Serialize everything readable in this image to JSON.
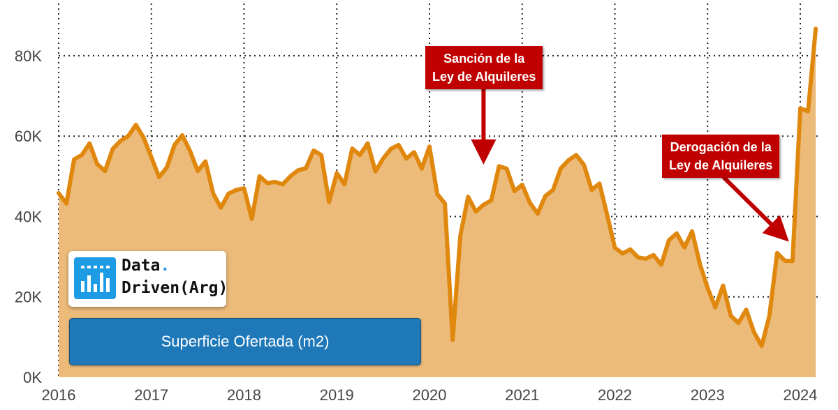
{
  "chart_data": {
    "type": "area",
    "title": "",
    "xlabel": "",
    "ylabel": "",
    "x_ticks": [
      "2016",
      "2017",
      "2018",
      "2019",
      "2020",
      "2021",
      "2022",
      "2023",
      "2024"
    ],
    "y_ticks": [
      "0K",
      "20K",
      "40K",
      "60K",
      "80K"
    ],
    "ylim": [
      0,
      90000
    ],
    "xlim": [
      "2016-01",
      "2024-04"
    ],
    "grid": true,
    "fill_color": "#ecbb7a",
    "line_color": "#e0870e",
    "series": [
      {
        "name": "Superficie Ofertada (m2)",
        "x": [
          "2016-01",
          "2016-02",
          "2016-03",
          "2016-04",
          "2016-05",
          "2016-06",
          "2016-07",
          "2016-08",
          "2016-09",
          "2016-10",
          "2016-11",
          "2016-12",
          "2017-01",
          "2017-02",
          "2017-03",
          "2017-04",
          "2017-05",
          "2017-06",
          "2017-07",
          "2017-08",
          "2017-09",
          "2017-10",
          "2017-11",
          "2017-12",
          "2018-01",
          "2018-02",
          "2018-03",
          "2018-04",
          "2018-05",
          "2018-06",
          "2018-07",
          "2018-08",
          "2018-09",
          "2018-10",
          "2018-11",
          "2018-12",
          "2019-01",
          "2019-02",
          "2019-03",
          "2019-04",
          "2019-05",
          "2019-06",
          "2019-07",
          "2019-08",
          "2019-09",
          "2019-10",
          "2019-11",
          "2019-12",
          "2020-01",
          "2020-02",
          "2020-03",
          "2020-04",
          "2020-05",
          "2020-06",
          "2020-07",
          "2020-08",
          "2020-09",
          "2020-10",
          "2020-11",
          "2020-12",
          "2021-01",
          "2021-02",
          "2021-03",
          "2021-04",
          "2021-05",
          "2021-06",
          "2021-07",
          "2021-08",
          "2021-09",
          "2021-10",
          "2021-11",
          "2021-12",
          "2022-01",
          "2022-02",
          "2022-03",
          "2022-04",
          "2022-05",
          "2022-06",
          "2022-07",
          "2022-08",
          "2022-09",
          "2022-10",
          "2022-11",
          "2022-12",
          "2023-01",
          "2023-02",
          "2023-03",
          "2023-04",
          "2023-05",
          "2023-06",
          "2023-07",
          "2023-08",
          "2023-09",
          "2023-10",
          "2023-11",
          "2023-12",
          "2024-01",
          "2024-02",
          "2024-03"
        ],
        "values": [
          45800,
          43200,
          54200,
          55300,
          58200,
          53000,
          51300,
          56800,
          58800,
          60000,
          62800,
          59600,
          54700,
          49800,
          52200,
          57800,
          60200,
          56300,
          51300,
          53700,
          45700,
          42200,
          45700,
          46600,
          47000,
          39400,
          50000,
          48300,
          48600,
          48000,
          50000,
          51500,
          52000,
          56400,
          55300,
          43600,
          50800,
          48000,
          56900,
          55300,
          58200,
          51200,
          54400,
          56800,
          57800,
          54400,
          56000,
          51900,
          57400,
          45600,
          43200,
          9300,
          35200,
          44900,
          41200,
          42900,
          44000,
          52500,
          51900,
          46300,
          47900,
          43400,
          40700,
          45100,
          46600,
          52000,
          54000,
          55300,
          52800,
          46600,
          48200,
          40400,
          32200,
          30800,
          31800,
          29800,
          29500,
          30400,
          28000,
          34100,
          35800,
          32300,
          36300,
          28200,
          22200,
          17400,
          22800,
          15300,
          13500,
          16800,
          11200,
          7800,
          15300,
          30900,
          29000,
          28900,
          66900,
          66200,
          86700
        ]
      }
    ],
    "annotations": [
      {
        "lines": [
          "Sanción de la",
          "Ley de Alquileres"
        ],
        "x": "2020-08"
      },
      {
        "lines": [
          "Derogación de la",
          "Ley de Alquileres"
        ],
        "x": "2023-12"
      }
    ]
  },
  "logo": {
    "line1": "Data",
    "dot": ".",
    "line2": "Driven(Arg)"
  },
  "legend_button": {
    "label": "Superficie Ofertada (m2)"
  }
}
